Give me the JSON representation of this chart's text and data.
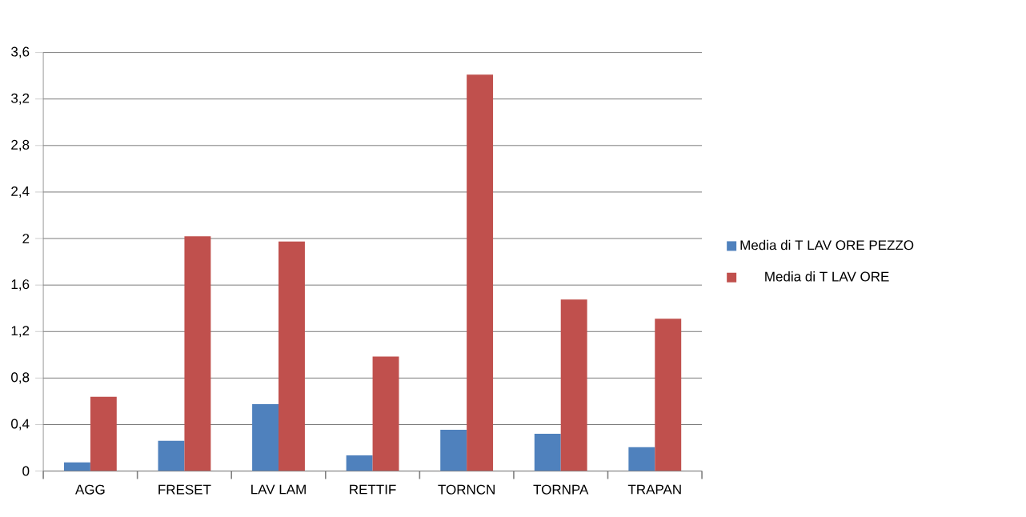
{
  "chart_data": {
    "type": "bar",
    "categories": [
      "AGG",
      "FRESET",
      "LAV LAM",
      "RETTIF",
      "TORNCN",
      "TORNPA",
      "TRAPAN"
    ],
    "series": [
      {
        "name": "Media di T LAV ORE PEZZO",
        "color": "#4f81bd",
        "values": [
          0.075,
          0.26,
          0.575,
          0.135,
          0.355,
          0.32,
          0.205
        ]
      },
      {
        "name": "Media di T LAV ORE",
        "color": "#c0504d",
        "values": [
          0.64,
          2.02,
          1.975,
          0.985,
          3.41,
          1.475,
          1.31
        ]
      }
    ],
    "ylim": [
      0,
      3.6
    ],
    "yticks": [
      0,
      {
        "value": 0.4,
        "label": "0,4"
      },
      {
        "value": 0.8,
        "label": "0,8"
      },
      {
        "value": 1.2,
        "label": "1,2"
      },
      {
        "value": 1.6,
        "label": "1,6"
      },
      2,
      {
        "value": 2.4,
        "label": "2,4"
      },
      {
        "value": 2.8,
        "label": "2,8"
      },
      {
        "value": 3.2,
        "label": "3,2"
      },
      {
        "value": 3.6,
        "label": "3,6"
      }
    ],
    "grid": "y",
    "legend": "right"
  }
}
